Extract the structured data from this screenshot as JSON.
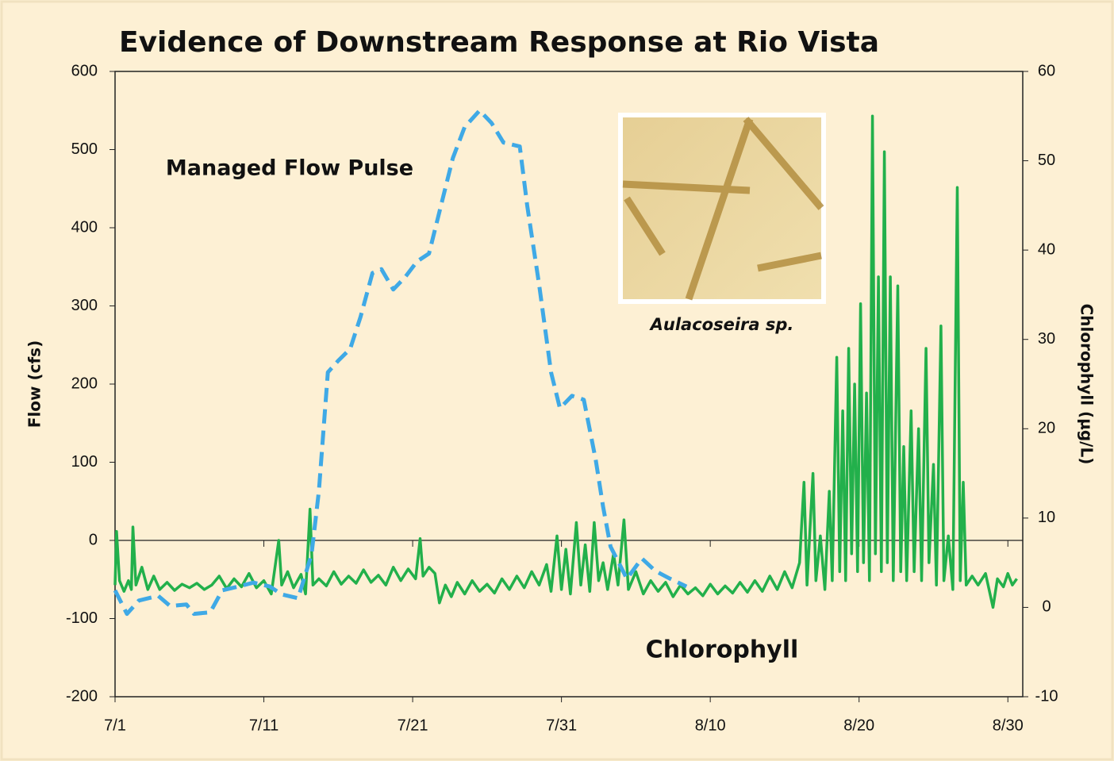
{
  "chart_data": {
    "type": "line",
    "title": "Evidence of Downstream Response at Rio Vista",
    "y_label": "Flow (cfs)",
    "y2_label": "Chlorophyll (µg/L)",
    "annotations": [
      "Managed Flow Pulse",
      "Chlorophyll"
    ],
    "inset_caption": "Aulacoseira sp.",
    "xlim": [
      0,
      61
    ],
    "xticks": [
      {
        "value": 0,
        "label": "7/1"
      },
      {
        "value": 10,
        "label": "7/11"
      },
      {
        "value": 20,
        "label": "7/21"
      },
      {
        "value": 30,
        "label": "7/31"
      },
      {
        "value": 40,
        "label": "8/10"
      },
      {
        "value": 50,
        "label": "8/20"
      },
      {
        "value": 60,
        "label": "8/30"
      }
    ],
    "ylim": [
      -200,
      600
    ],
    "yticks": [
      -200,
      -100,
      0,
      100,
      200,
      300,
      400,
      500,
      600
    ],
    "y2lim": [
      -10,
      60
    ],
    "y2ticks": [
      -10,
      0,
      10,
      20,
      30,
      40,
      50,
      60
    ],
    "zero_line": true,
    "series": [
      {
        "name": "Managed Flow Pulse",
        "color": "#3fa9e6",
        "dashed": true,
        "axis": "y",
        "x": [
          0,
          0.8,
          1.6,
          2.9,
          3.7,
          4.8,
          5.3,
          6.4,
          7.2,
          8.3,
          9.3,
          10.4,
          11.2,
          12.3,
          13.2,
          13.7,
          14.3,
          15.0,
          15.8,
          16.5,
          17.3,
          17.9,
          18.7,
          19.5,
          20.3,
          21.1,
          21.9,
          22.7,
          23.5,
          24.5,
          25.3,
          26.1,
          27.2,
          27.7,
          28.5,
          29.3,
          29.9,
          30.7,
          31.5,
          32.3,
          32.8,
          33.3,
          34.4,
          35.4,
          36.3,
          37.3,
          38.4
        ],
        "values": [
          -64,
          -94,
          -77,
          -71,
          -84,
          -82,
          -94,
          -92,
          -64,
          -59,
          -54,
          -59,
          -69,
          -74,
          -18,
          63,
          215,
          230,
          245,
          286,
          342,
          347,
          321,
          337,
          357,
          367,
          428,
          489,
          529,
          550,
          534,
          509,
          504,
          428,
          327,
          215,
          169,
          185,
          180,
          103,
          43,
          -8,
          -49,
          -23,
          -39,
          -49,
          -59
        ]
      },
      {
        "name": "Chlorophyll",
        "color": "#22b04b",
        "axis": "y2",
        "x": [
          0,
          0.1,
          0.3,
          0.6,
          0.9,
          1.1,
          1.2,
          1.4,
          1.8,
          2.2,
          2.6,
          3,
          3.5,
          4,
          4.5,
          5,
          5.5,
          6,
          6.5,
          7,
          7.5,
          8,
          8.5,
          9,
          9.5,
          10,
          10.5,
          11,
          11.2,
          11.6,
          12,
          12.5,
          12.8,
          13.1,
          13.3,
          13.7,
          14.2,
          14.7,
          15.2,
          15.7,
          16.2,
          16.7,
          17.2,
          17.7,
          18.2,
          18.7,
          19.2,
          19.7,
          20.2,
          20.5,
          20.7,
          21.1,
          21.5,
          21.8,
          22.2,
          22.6,
          23,
          23.5,
          24,
          24.5,
          25,
          25.5,
          26,
          26.5,
          27,
          27.5,
          28,
          28.5,
          29,
          29.3,
          29.7,
          30,
          30.3,
          30.6,
          31,
          31.3,
          31.6,
          31.9,
          32.2,
          32.5,
          32.8,
          33.1,
          33.5,
          33.8,
          34.2,
          34.5,
          35,
          35.5,
          36,
          36.5,
          37,
          37.5,
          38,
          38.5,
          39,
          39.5,
          40,
          40.5,
          41,
          41.5,
          42,
          42.5,
          43,
          43.5,
          44,
          44.5,
          45,
          45.5,
          46,
          46.3,
          46.5,
          46.9,
          47.1,
          47.4,
          47.7,
          48,
          48.2,
          48.5,
          48.7,
          48.9,
          49.1,
          49.3,
          49.5,
          49.7,
          49.9,
          50.1,
          50.3,
          50.5,
          50.7,
          50.9,
          51.1,
          51.3,
          51.5,
          51.7,
          51.9,
          52.1,
          52.3,
          52.6,
          52.8,
          53.0,
          53.2,
          53.5,
          53.7,
          54.0,
          54.2,
          54.5,
          54.7,
          55,
          55.2,
          55.5,
          55.7,
          56,
          56.3,
          56.6,
          56.8,
          57,
          57.2,
          57.6,
          58,
          58.5,
          59,
          59.3,
          59.7,
          60,
          60.3,
          60.6
        ],
        "values": [
          2.5,
          8.5,
          3,
          1.8,
          3,
          2,
          9,
          2.5,
          4.5,
          2,
          3.5,
          2,
          2.8,
          1.9,
          2.6,
          2.2,
          2.7,
          2,
          2.5,
          3.5,
          2.1,
          3.2,
          2.3,
          3.8,
          2.2,
          3,
          1.5,
          7.5,
          2.5,
          4,
          2.2,
          3.7,
          1.5,
          11,
          2.5,
          3.2,
          2.4,
          4,
          2.6,
          3.5,
          2.7,
          4.2,
          2.8,
          3.6,
          2.5,
          4.5,
          3,
          4.3,
          3.2,
          7.7,
          3.5,
          4.5,
          3.8,
          0.5,
          2.5,
          1.2,
          2.8,
          1.5,
          3,
          1.8,
          2.6,
          1.6,
          3.2,
          2,
          3.5,
          2.2,
          4,
          2.5,
          4.8,
          1.8,
          8,
          2,
          6.5,
          1.5,
          9.5,
          2.5,
          7,
          1.8,
          9.5,
          3,
          5,
          2,
          6,
          2.5,
          9.8,
          2,
          4,
          1.5,
          3,
          1.8,
          2.8,
          1.2,
          2.5,
          1.5,
          2.2,
          1.3,
          2.6,
          1.5,
          2.4,
          1.6,
          2.8,
          1.7,
          3,
          1.8,
          3.5,
          2,
          4,
          2.2,
          5,
          14,
          2.5,
          15,
          3,
          8,
          2,
          13,
          3,
          28,
          4,
          22,
          3,
          29,
          6,
          25,
          4,
          34,
          5,
          24,
          3,
          55,
          6,
          37,
          4,
          51,
          5,
          37,
          3,
          36,
          4,
          18,
          3,
          22,
          4,
          20,
          3,
          29,
          5,
          16,
          2.5,
          31.5,
          3,
          8,
          2,
          47,
          3,
          14,
          2.5,
          3.5,
          2.5,
          3.8,
          0,
          3.2,
          2.3,
          3.8,
          2.5,
          3.2
        ]
      }
    ]
  }
}
